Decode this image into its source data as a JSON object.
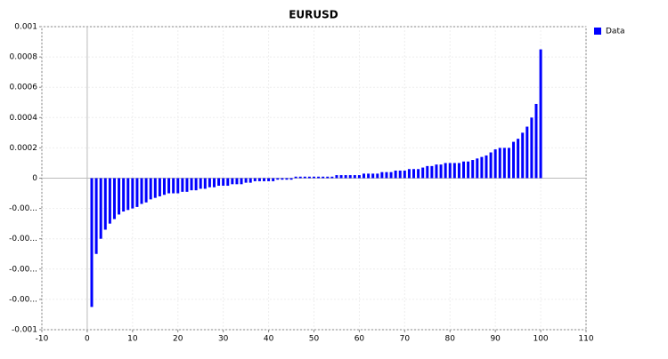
{
  "chart_data": {
    "type": "bar",
    "title": "EURUSD",
    "x": [
      1,
      2,
      3,
      4,
      5,
      6,
      7,
      8,
      9,
      10,
      11,
      12,
      13,
      14,
      15,
      16,
      17,
      18,
      19,
      20,
      21,
      22,
      23,
      24,
      25,
      26,
      27,
      28,
      29,
      30,
      31,
      32,
      33,
      34,
      35,
      36,
      37,
      38,
      39,
      40,
      41,
      42,
      43,
      44,
      45,
      46,
      47,
      48,
      49,
      50,
      51,
      52,
      53,
      54,
      55,
      56,
      57,
      58,
      59,
      60,
      61,
      62,
      63,
      64,
      65,
      66,
      67,
      68,
      69,
      70,
      71,
      72,
      73,
      74,
      75,
      76,
      77,
      78,
      79,
      80,
      81,
      82,
      83,
      84,
      85,
      86,
      87,
      88,
      89,
      90,
      91,
      92,
      93,
      94,
      95,
      96,
      97,
      98,
      99,
      100
    ],
    "series": [
      {
        "name": "Data",
        "color": "#0000ff",
        "values": [
          -0.00085,
          -0.0005,
          -0.0004,
          -0.00034,
          -0.0003,
          -0.00027,
          -0.00024,
          -0.00022,
          -0.00021,
          -0.0002,
          -0.00019,
          -0.00017,
          -0.00016,
          -0.00014,
          -0.00013,
          -0.00012,
          -0.00011,
          -0.0001,
          -0.0001,
          -0.0001,
          -9e-05,
          -9e-05,
          -8e-05,
          -8e-05,
          -7e-05,
          -7e-05,
          -6e-05,
          -6e-05,
          -5e-05,
          -5e-05,
          -5e-05,
          -4e-05,
          -4e-05,
          -4e-05,
          -3e-05,
          -3e-05,
          -2e-05,
          -2e-05,
          -2e-05,
          -2e-05,
          -2e-05,
          -1e-05,
          -1e-05,
          -1e-05,
          -1e-05,
          1e-05,
          1e-05,
          1e-05,
          1e-05,
          1e-05,
          1e-05,
          1e-05,
          1e-05,
          1e-05,
          2e-05,
          2e-05,
          2e-05,
          2e-05,
          2e-05,
          2e-05,
          3e-05,
          3e-05,
          3e-05,
          3e-05,
          4e-05,
          4e-05,
          4e-05,
          5e-05,
          5e-05,
          5e-05,
          6e-05,
          6e-05,
          6e-05,
          7e-05,
          8e-05,
          8e-05,
          9e-05,
          9e-05,
          0.0001,
          0.0001,
          0.0001,
          0.0001,
          0.00011,
          0.00011,
          0.00012,
          0.00013,
          0.00014,
          0.00015,
          0.00017,
          0.00019,
          0.0002,
          0.0002,
          0.0002,
          0.00024,
          0.00026,
          0.0003,
          0.00034,
          0.0004,
          0.00049,
          0.00085
        ]
      }
    ],
    "xlim": [
      -10,
      110
    ],
    "xticks": [
      -10,
      0,
      10,
      20,
      30,
      40,
      50,
      60,
      70,
      80,
      90,
      100,
      110
    ],
    "ylim": [
      -0.001,
      0.001
    ],
    "yticks": [
      -0.001,
      {
        "value": -0.0008,
        "label": "-0.00..."
      },
      {
        "value": -0.0006,
        "label": "-0.00..."
      },
      {
        "value": -0.0004,
        "label": "-0.00..."
      },
      {
        "value": -0.0002,
        "label": "-0.00..."
      },
      0,
      0.0002,
      0.0004,
      0.0006,
      0.0008,
      0.001
    ],
    "grid": true,
    "legend": "right"
  }
}
